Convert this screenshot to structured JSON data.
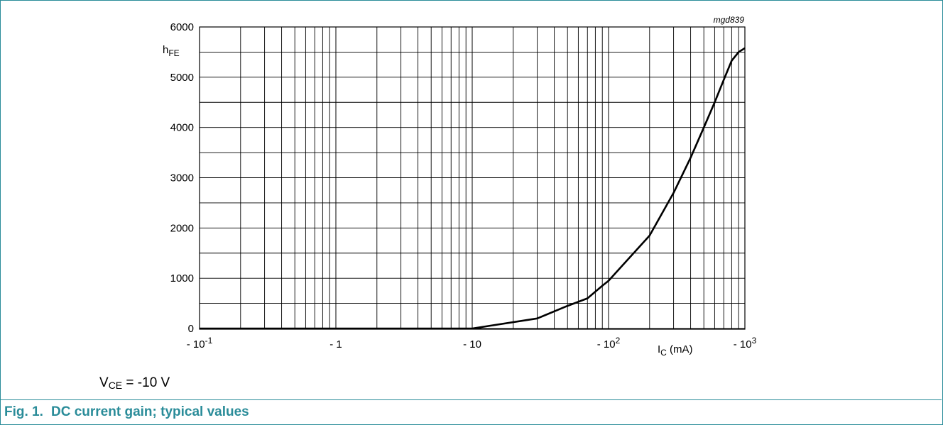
{
  "figure": {
    "label": "Fig. 1.",
    "caption": "DC current gain; typical values",
    "code": "mgd839",
    "condition": {
      "symbol": "V",
      "subscript": "CE",
      "text": " = -10 V"
    },
    "accent_color": "#2a8c99"
  },
  "chart_data": {
    "type": "line",
    "ylabel": {
      "main": "h",
      "sub": "FE"
    },
    "xlabel": {
      "main": "I",
      "sub": "C",
      "unit": " (mA)"
    },
    "x_scale": "log",
    "xlim": [
      -0.1,
      -1000
    ],
    "ylim": [
      0,
      6000
    ],
    "grid": true,
    "y_ticks": [
      0,
      1000,
      2000,
      3000,
      4000,
      5000,
      6000
    ],
    "x_tick_labels": [
      {
        "value": -0.1,
        "base": "- 10",
        "sup": "-1"
      },
      {
        "value": -1,
        "base": "- 1",
        "sup": ""
      },
      {
        "value": -10,
        "base": "- 10",
        "sup": ""
      },
      {
        "value": -100,
        "base": "- 10",
        "sup": "2"
      },
      {
        "value": -1000,
        "base": "- 10",
        "sup": "3"
      }
    ],
    "series": [
      {
        "x": [
          -0.1,
          -0.5,
          -1,
          -5,
          -10,
          -30,
          -50,
          -70,
          -90,
          -100,
          -200,
          -300,
          -400,
          -500,
          -600,
          -700,
          -800,
          -900,
          -1000
        ],
        "y": [
          0,
          0,
          0,
          0,
          0,
          200,
          450,
          600,
          850,
          950,
          1850,
          2700,
          3400,
          4000,
          4500,
          4950,
          5330,
          5500,
          5580
        ]
      }
    ]
  }
}
